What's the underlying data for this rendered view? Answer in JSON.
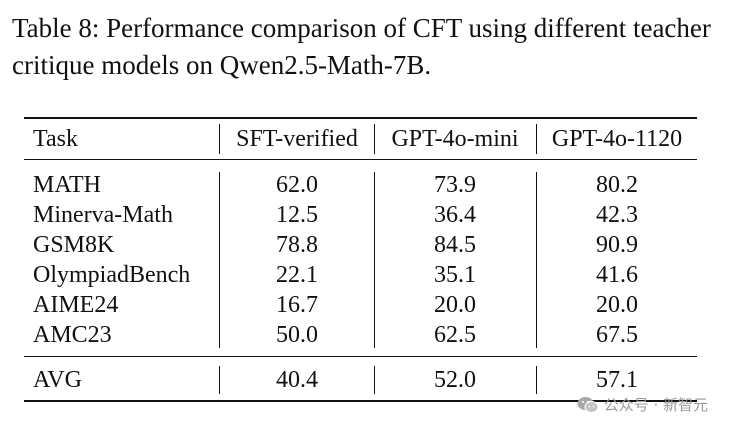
{
  "caption": "Table 8: Performance comparison of CFT using different teacher critique models on Qwen2.5-Math-7B.",
  "table": {
    "headers": [
      "Task",
      "SFT-verified",
      "GPT-4o-mini",
      "GPT-4o-1120"
    ],
    "rows": [
      [
        "MATH",
        "62.0",
        "73.9",
        "80.2"
      ],
      [
        "Minerva-Math",
        "12.5",
        "36.4",
        "42.3"
      ],
      [
        "GSM8K",
        "78.8",
        "84.5",
        "90.9"
      ],
      [
        "OlympiadBench",
        "22.1",
        "35.1",
        "41.6"
      ],
      [
        "AIME24",
        "16.7",
        "20.0",
        "20.0"
      ],
      [
        "AMC23",
        "50.0",
        "62.5",
        "67.5"
      ]
    ],
    "summary": [
      "AVG",
      "40.4",
      "52.0",
      "57.1"
    ]
  },
  "watermark": {
    "text": "公众号 · 新智元",
    "icon": "wechat-icon"
  }
}
